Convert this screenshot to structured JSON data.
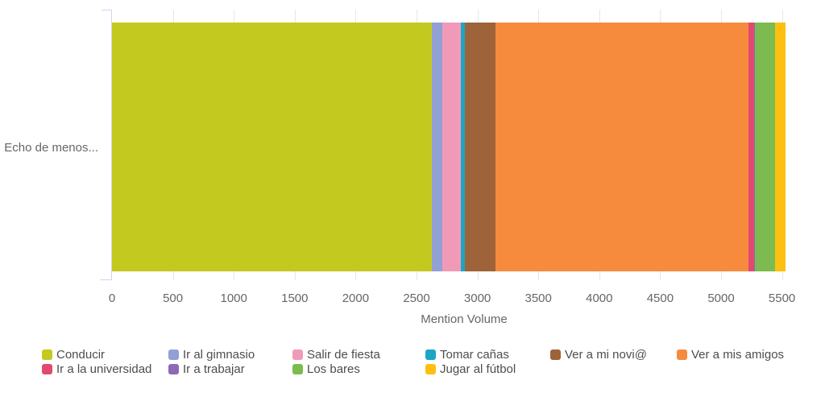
{
  "chart": {
    "y_axis_label": "Echo de menos...",
    "x_axis_title": "Mention Volume"
  },
  "chart_data": {
    "type": "bar",
    "orientation": "horizontal",
    "stacked": true,
    "title": "",
    "xlabel": "Mention Volume",
    "ylabel": "",
    "categories": [
      "Echo de menos..."
    ],
    "series": [
      {
        "name": "Conducir",
        "color": "#c4c91f",
        "values": [
          2626
        ]
      },
      {
        "name": "Ir al gimnasio",
        "color": "#92a0d6",
        "values": [
          86
        ]
      },
      {
        "name": "Salir de fiesta",
        "color": "#f19ab8",
        "values": [
          155
        ]
      },
      {
        "name": "Tomar cañas",
        "color": "#1ba6c4",
        "values": [
          30
        ]
      },
      {
        "name": "Ver a mi novi@",
        "color": "#9e6339",
        "values": [
          248
        ]
      },
      {
        "name": "Ver a mis amigos",
        "color": "#f78b3d",
        "values": [
          2077
        ]
      },
      {
        "name": "Ir a la universidad",
        "color": "#e04a72",
        "values": [
          46
        ]
      },
      {
        "name": "Ir a trabajar",
        "color": "#8d68b8",
        "values": [
          13
        ]
      },
      {
        "name": "Los bares",
        "color": "#7cbb4f",
        "values": [
          159
        ]
      },
      {
        "name": "Jugar al fútbol",
        "color": "#fdc011",
        "values": [
          86
        ]
      }
    ],
    "total": 5526,
    "x_ticks": [
      0,
      500,
      1000,
      1500,
      2000,
      2500,
      3000,
      3500,
      4000,
      4500,
      5000,
      5500
    ],
    "xlim": [
      0,
      5790
    ],
    "grid": true,
    "legend_position": "bottom",
    "colors": {
      "axis_line": "#ccd6eb",
      "gridline": "#e6e6e6",
      "axis_text": "#666666",
      "legend_text": "#4d4d4d"
    }
  }
}
